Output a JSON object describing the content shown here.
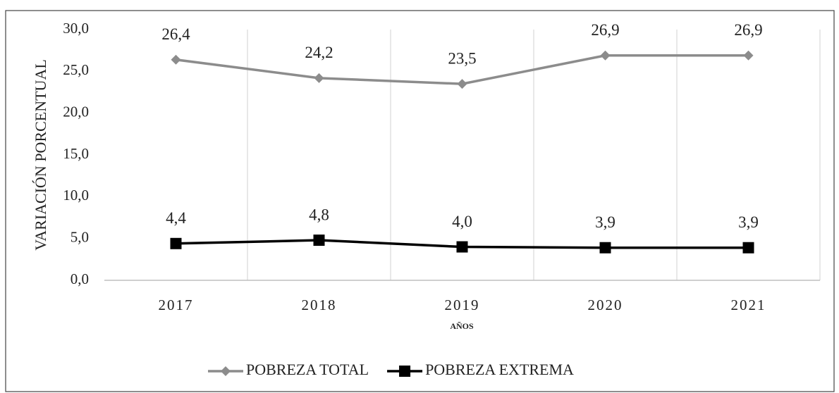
{
  "chart_data": {
    "type": "line",
    "y_label": "VARIACIÓN PORCENTUAL",
    "x_label": "AÑOS",
    "categories": [
      "2017",
      "2018",
      "2019",
      "2020",
      "2021"
    ],
    "series": [
      {
        "name": "POBREZA TOTAL",
        "color": "#8c8c8c",
        "marker": "diamond",
        "values": [
          26.4,
          24.2,
          23.5,
          26.9,
          26.9
        ],
        "value_labels": [
          "26,4",
          "24,2",
          "23,5",
          "26,9",
          "26,9"
        ]
      },
      {
        "name": "POBREZA EXTREMA",
        "color": "#000000",
        "marker": "square",
        "values": [
          4.4,
          4.8,
          4.0,
          3.9,
          3.9
        ],
        "value_labels": [
          "4,4",
          "4,8",
          "4,0",
          "3,9",
          "3,9"
        ]
      }
    ],
    "ylim": [
      0,
      30
    ],
    "yticks": [
      {
        "value": 0,
        "label": "0,0"
      },
      {
        "value": 5,
        "label": "5,0"
      },
      {
        "value": 10,
        "label": "10,0"
      },
      {
        "value": 15,
        "label": "15,0"
      },
      {
        "value": 20,
        "label": "20,0"
      },
      {
        "value": 25,
        "label": "25,0"
      },
      {
        "value": 30,
        "label": "30,0"
      }
    ],
    "grid": "x",
    "legend": "bottom"
  }
}
